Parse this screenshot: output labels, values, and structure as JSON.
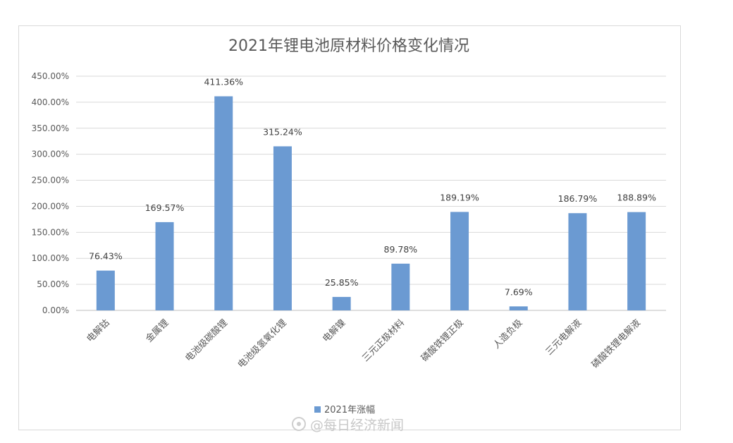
{
  "chart_data": {
    "type": "bar",
    "title": "2021年锂电池原材料价格变化情况",
    "categories": [
      "电解钴",
      "金属锂",
      "电池级碳酸锂",
      "电池级氢氧化锂",
      "电解镍",
      "三元正极材料",
      "磷酸铁锂正极",
      "人造负极",
      "三元电解液",
      "磷酸铁锂电解液"
    ],
    "series": [
      {
        "name": "2021年涨幅",
        "values": [
          76.43,
          169.57,
          411.36,
          315.24,
          25.85,
          89.78,
          189.19,
          7.69,
          186.79,
          188.89
        ],
        "color": "#6b9ad2"
      }
    ],
    "data_labels": [
      "76.43%",
      "169.57%",
      "411.36%",
      "315.24%",
      "25.85%",
      "89.78%",
      "189.19%",
      "7.69%",
      "186.79%",
      "188.89%"
    ],
    "y_ticks": [
      "0.00%",
      "50.00%",
      "100.00%",
      "150.00%",
      "200.00%",
      "250.00%",
      "300.00%",
      "350.00%",
      "400.00%",
      "450.00%"
    ],
    "ylim": [
      0,
      450
    ],
    "grid": true,
    "legend_position": "bottom"
  },
  "watermark": "@每日经济新闻"
}
